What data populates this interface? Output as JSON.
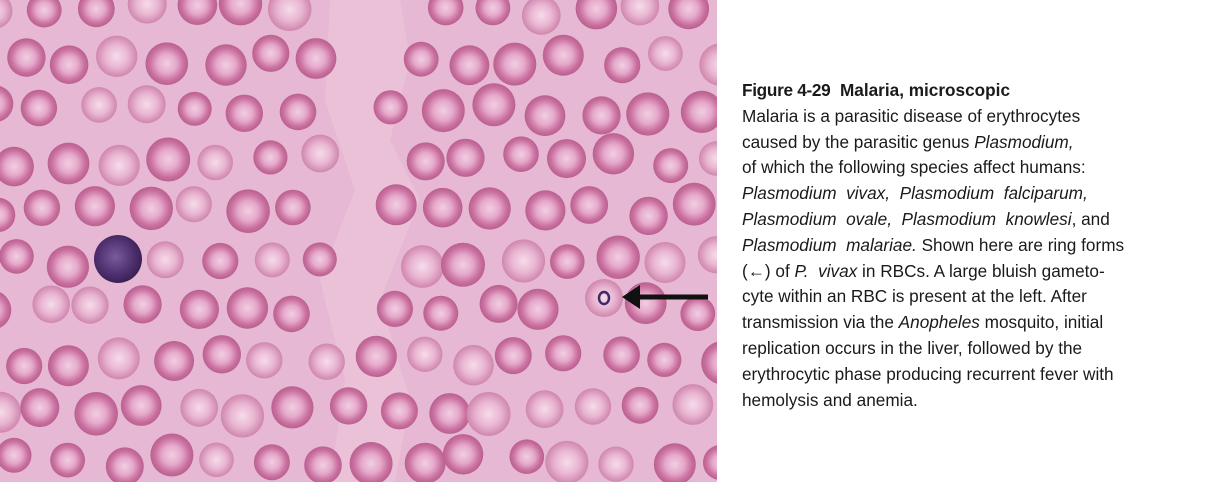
{
  "figure": {
    "number": "Figure 4-29",
    "title": "Malaria, microscopic"
  },
  "caption": {
    "lines": [
      [
        {
          "t": "Malaria is a parasitic disease of erythrocytes"
        }
      ],
      [
        {
          "t": "caused by the parasitic genus "
        },
        {
          "t": "Plasmodium,",
          "i": true
        }
      ],
      [
        {
          "t": "of which the following species affect humans:"
        }
      ],
      [
        {
          "t": "Plasmodium  vivax,  Plasmodium  falciparum,",
          "i": true
        }
      ],
      [
        {
          "t": "Plasmodium  ovale,  Plasmodium  knowlesi",
          "i": true
        },
        {
          "t": ", and"
        }
      ],
      [
        {
          "t": "Plasmodium  malariae.",
          "i": true
        },
        {
          "t": " Shown here are ring forms"
        }
      ],
      [
        {
          "t": "(←) of "
        },
        {
          "t": "P.  vivax",
          "i": true
        },
        {
          "t": " in RBCs. A large bluish gameto-"
        }
      ],
      [
        {
          "t": "cyte within an RBC is present at the left. After"
        }
      ],
      [
        {
          "t": "transmission via the "
        },
        {
          "t": "Anopheles",
          "i": true
        },
        {
          "t": " mosquito, initial"
        }
      ],
      [
        {
          "t": "replication occurs in the liver, followed by the"
        }
      ],
      [
        {
          "t": "erythrocytic phase producing recurrent fever with"
        }
      ],
      [
        {
          "t": "hemolysis and anemia."
        }
      ]
    ]
  },
  "image": {
    "description_icon": "blood-smear-micrograph",
    "colors": {
      "background": "#e8b6d2",
      "cell_rim": "#c56b9c",
      "cell_center": "#f2cbe0",
      "gametocyte": "#5a3a78",
      "arrow": "#111111"
    }
  }
}
